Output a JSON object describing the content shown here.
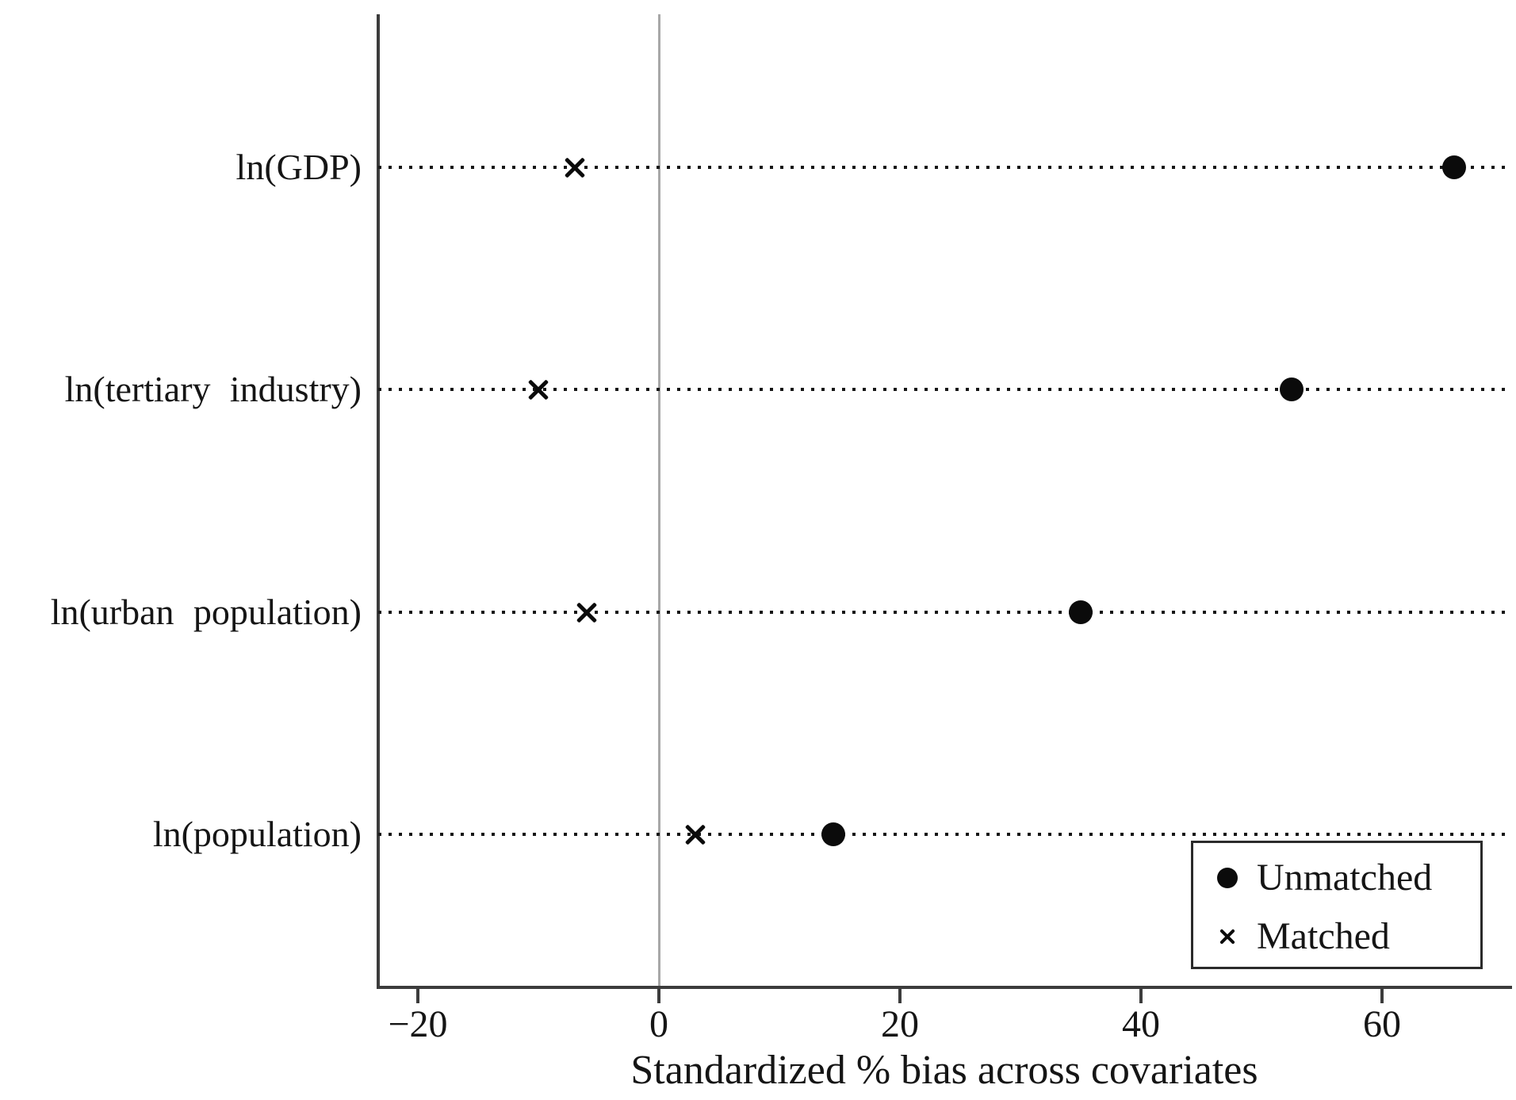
{
  "chart_data": {
    "type": "scatter",
    "title": "",
    "xlabel": "Standardized % bias across covariates",
    "ylabel": "",
    "categories": [
      "ln(GDP)",
      "ln(tertiary industry)",
      "ln(urban population)",
      "ln(population)"
    ],
    "series": [
      {
        "name": "Unmatched",
        "marker": "filled-circle",
        "values": [
          66,
          52.5,
          35,
          14.5
        ]
      },
      {
        "name": "Matched",
        "marker": "x-cross",
        "values": [
          -7,
          -10,
          -6,
          3
        ]
      }
    ],
    "x_ticks": [
      -20,
      0,
      20,
      40,
      60
    ],
    "x_tick_labels": [
      "−20",
      "0",
      "20",
      "40",
      "60"
    ],
    "xlim": [
      -23.3,
      70.7
    ],
    "zero_reference_line": true,
    "row_guide_style": "dotted",
    "legend_position": "bottom-right",
    "colors": {
      "marker": "#0b0b0b",
      "axis": "#3c3c3c",
      "zero_line": "#a8a8a8",
      "text": "#151515",
      "background": "#ffffff"
    }
  }
}
